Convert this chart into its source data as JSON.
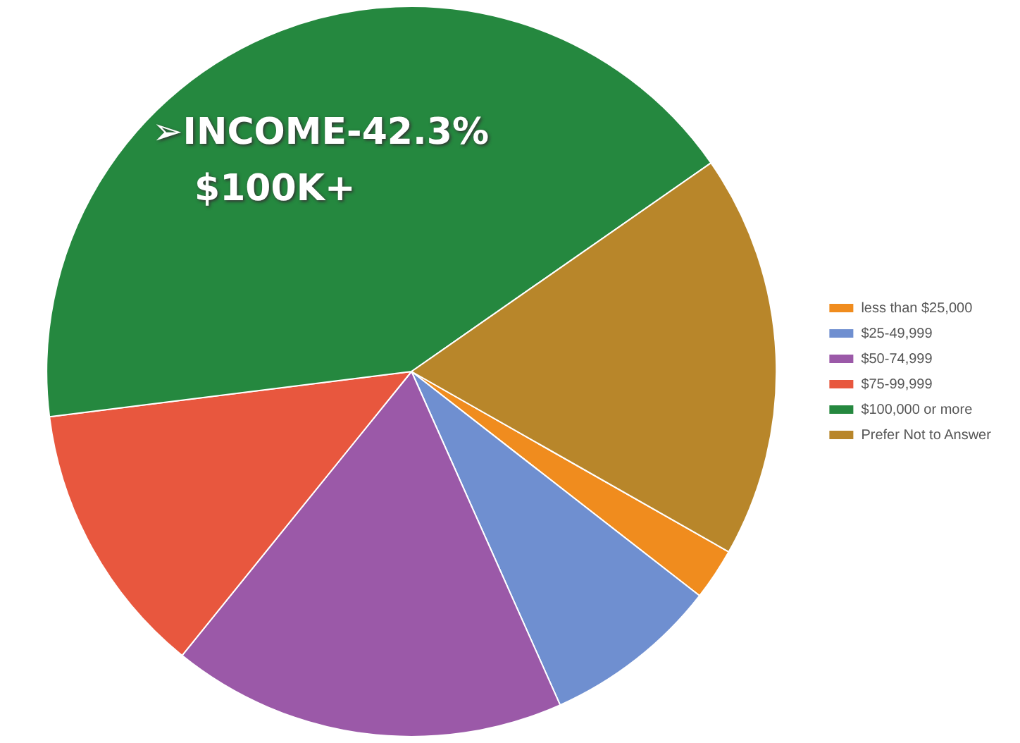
{
  "chart_data": {
    "type": "pie",
    "categories": [
      "less than $25,000",
      "$25-49,999",
      "$50-74,999",
      "$75-99,999",
      "$100,000 or more",
      "Prefer Not to Answer"
    ],
    "values": [
      2.3,
      7.8,
      17.5,
      12.2,
      42.3,
      17.9
    ],
    "colors": [
      "#f08c1e",
      "#6f8fd0",
      "#9b59a8",
      "#e8573e",
      "#25883f",
      "#b8862a"
    ],
    "legend": "right",
    "annotations": [
      "➢INCOME-42.3%",
      "$100K+"
    ]
  }
}
